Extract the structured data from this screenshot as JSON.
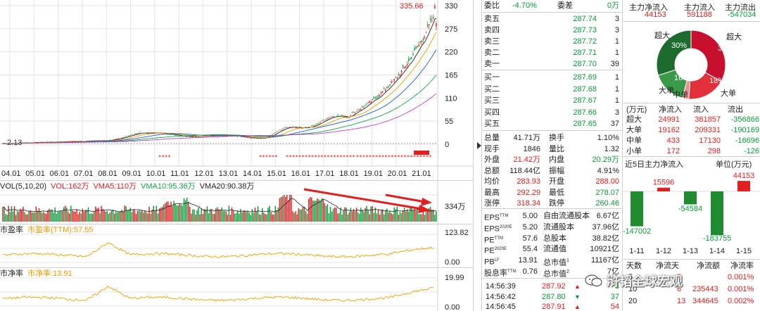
{
  "chart_header": {
    "price_high_label": "335.66",
    "base_price_label": "2.13"
  },
  "kline": {
    "y_ticks": [
      "330",
      "275",
      "220",
      "165",
      "110",
      "55",
      "0"
    ],
    "x_ticks": [
      "04.01",
      "05.01",
      "06.01",
      "07.01",
      "08.01",
      "09.01",
      "10.01",
      "11.01",
      "12.01",
      "13.01",
      "14.01",
      "15.01",
      "16.01",
      "17.01",
      "18.01",
      "19.01",
      "20.01",
      "21.01"
    ]
  },
  "volume": {
    "title": "VOL(5,10,20)",
    "vol": "VOL:162万",
    "vma5": "VMA5:110万",
    "vma10": "VMA10:95.36万",
    "vma20": "VMA20:90.38万",
    "axis_label": "334万"
  },
  "pe_panel": {
    "title": "市盈率",
    "ttm": "市盈率(TTM):57.55",
    "top": "123.82",
    "bottom": "0.00"
  },
  "pb_panel": {
    "title": "市净率",
    "value": "市净率:13.91",
    "top": "19.99",
    "bottom": "0.00"
  },
  "quote": {
    "webi_label": "委比",
    "webi_value": "-4.70%",
    "weicha_label": "委差",
    "weicha_value": "0万",
    "sell": [
      {
        "label": "卖五",
        "price": "287.74",
        "vol": "3"
      },
      {
        "label": "卖四",
        "price": "287.73",
        "vol": "3"
      },
      {
        "label": "卖三",
        "price": "287.72",
        "vol": "1"
      },
      {
        "label": "卖二",
        "price": "287.71",
        "vol": "1"
      },
      {
        "label": "卖一",
        "price": "287.70",
        "vol": "39"
      }
    ],
    "buy": [
      {
        "label": "买一",
        "price": "287.69",
        "vol": "1"
      },
      {
        "label": "买二",
        "price": "287.68",
        "vol": "1"
      },
      {
        "label": "买三",
        "price": "287.67",
        "vol": "1"
      },
      {
        "label": "买四",
        "price": "287.66",
        "vol": "3"
      },
      {
        "label": "买五",
        "price": "287.65",
        "vol": "37"
      }
    ],
    "stats": [
      {
        "k1": "总量",
        "v1": "41.71万",
        "k2": "换手",
        "v2": "1.10%"
      },
      {
        "k1": "现手",
        "v1": "1846",
        "k2": "量比",
        "v2": "1.32"
      },
      {
        "k1": "外盘",
        "v1": "21.42万",
        "k2": "内盘",
        "v2": "20.29万"
      },
      {
        "k1": "总额",
        "v1": "118.44亿",
        "k2": "振幅",
        "v2": "4.91%"
      },
      {
        "k1": "均价",
        "v1": "283.93",
        "k2": "开盘",
        "v2": "288.00"
      },
      {
        "k1": "最高",
        "v1": "292.29",
        "k2": "最低",
        "v2": "278.07"
      },
      {
        "k1": "涨停",
        "v1": "318.34",
        "k2": "跌停",
        "v2": "260.46"
      }
    ],
    "fundamentals": [
      {
        "k1": "EPS",
        "s1": "TTM",
        "v1": "5.00",
        "k2": "自由流通股本",
        "v2": "6.67亿"
      },
      {
        "k1": "EPS",
        "s1": "2020E",
        "v1": "5.20",
        "k2": "流通股本",
        "v2": "37.96亿"
      },
      {
        "k1": "PE",
        "s1": "TTM",
        "v1": "57.6",
        "k2": "总股本",
        "v2": "38.82亿"
      },
      {
        "k1": "PE",
        "s1": "2020E",
        "v1": "55.4",
        "k2": "流通值",
        "v2": "10921亿"
      },
      {
        "k1": "PB",
        "s1": "LF",
        "v1": "13.91",
        "k2": "总市值",
        "s2": "1",
        "v2": "11167亿"
      },
      {
        "k1": "股息率",
        "s1": "TTM",
        "v1": "0.76",
        "k2": "总市值",
        "s2": "2",
        "v2": "7亿"
      }
    ],
    "ticks": [
      {
        "time": "14:56:39",
        "price": "287.92",
        "vol": "3"
      },
      {
        "time": "14:56:42",
        "price": "287.80",
        "vol": "37"
      },
      {
        "time": "14:56:45",
        "price": "287.91",
        "vol": "54"
      }
    ]
  },
  "capital_flow": {
    "headers": [
      "主力净流入",
      "主力流入",
      "主力流出"
    ],
    "values": [
      "44153",
      "591188",
      "-547034"
    ],
    "pie": {
      "slices": [
        {
          "name": "超大",
          "pct": 33,
          "color": "#c8102e"
        },
        {
          "name": "大单",
          "pct": 18,
          "color": "#e0303a"
        },
        {
          "name": "中单",
          "pct": 3,
          "color": "#f28a8a"
        },
        {
          "name": "中单",
          "pct": 16,
          "color": "#3a9a4a"
        },
        {
          "name": "超大",
          "pct": 30,
          "color": "#1e6b30"
        }
      ],
      "labels": [
        "超大",
        "33%",
        "18%",
        "大单",
        "中单",
        "16%",
        "大单",
        "30%",
        "超大"
      ]
    },
    "table_headers": [
      "(万元)",
      "净流入",
      "流入",
      "流出"
    ],
    "table_rows": [
      {
        "name": "超大",
        "net": "24991",
        "in": "381857",
        "out": "-356866"
      },
      {
        "name": "大单",
        "net": "19162",
        "in": "209331",
        "out": "-190169"
      },
      {
        "name": "中单",
        "net": "433",
        "in": "17130",
        "out": "-16696"
      },
      {
        "name": "小单",
        "net": "172",
        "in": "298",
        "out": "-126"
      }
    ],
    "five_day_title": "近5日主力净流入",
    "unit": "单位(万元)",
    "five_day": {
      "type": "bar",
      "categories": [
        "1-11",
        "1-12",
        "1-13",
        "1-14",
        "1-15"
      ],
      "values": [
        -147002,
        15596,
        -54584,
        -183755,
        44153
      ],
      "labels": [
        "-147002",
        "15596",
        "-54584",
        "-183755",
        "44153"
      ]
    },
    "ddx_headers": [
      "天数",
      "净流天",
      "净流额",
      "净流率"
    ],
    "ddx_rows": [
      {
        "days": "5",
        "nd": "3",
        "amt": "",
        "rate": "0.001%"
      },
      {
        "days": "10",
        "nd": "6",
        "amt": "235443",
        "rate": "0.001%"
      },
      {
        "days": "20",
        "nd": "13",
        "amt": "344645",
        "rate": "0.002%"
      },
      {
        "days": "",
        "nd": "",
        "amt": "",
        "rate": ""
      }
    ]
  },
  "watermark": "浒韬全球宏观"
}
